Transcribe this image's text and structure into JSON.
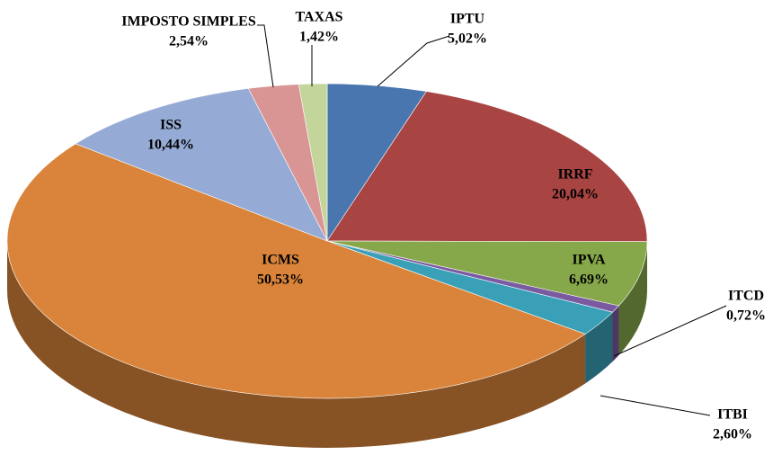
{
  "chart_data": {
    "type": "pie",
    "categories": [
      "IPTU",
      "IRRF",
      "IPVA",
      "ITCD",
      "ITBI",
      "ICMS",
      "ISS",
      "IMPOSTO SIMPLES",
      "TAXAS"
    ],
    "values": [
      5.02,
      20.04,
      6.69,
      0.72,
      2.6,
      50.53,
      10.44,
      2.54,
      1.42
    ],
    "value_labels": [
      "5,02%",
      "20,04%",
      "6,69%",
      "0,72%",
      "2,60%",
      "50,53%",
      "10,44%",
      "2,54%",
      "1,42%"
    ],
    "colors": [
      "#4a76b0",
      "#a84442",
      "#86a84a",
      "#7a5aa0",
      "#3aa0b8",
      "#d9843a",
      "#95abd5",
      "#d99594",
      "#c3d59a"
    ]
  }
}
